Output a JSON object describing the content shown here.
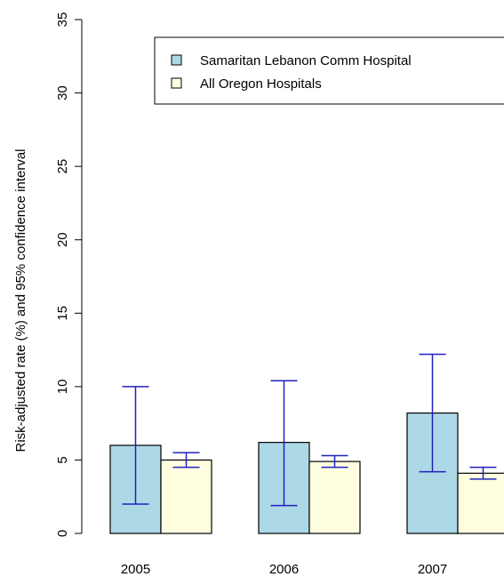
{
  "chart_data": {
    "type": "bar",
    "title": "",
    "xlabel": "",
    "ylabel": "Risk-adjusted rate (%) and 95% confidence interval",
    "ylim": [
      0,
      35
    ],
    "yticks": [
      0,
      5,
      10,
      15,
      20,
      25,
      30,
      35
    ],
    "ytick_labels": [
      "0",
      "5",
      "10",
      "15",
      "20",
      "25",
      "30",
      "35"
    ],
    "categories": [
      "2005",
      "2006",
      "2007"
    ],
    "series": [
      {
        "name": "Samaritan Lebanon Comm Hospital",
        "color": "#add8e6",
        "values": [
          6.0,
          6.2,
          8.2
        ],
        "ci_low": [
          2.0,
          1.9,
          4.2
        ],
        "ci_high": [
          10.0,
          10.4,
          12.2
        ]
      },
      {
        "name": "All Oregon Hospitals",
        "color": "#ffffe0",
        "values": [
          5.0,
          4.9,
          4.1
        ],
        "ci_low": [
          4.5,
          4.5,
          3.7
        ],
        "ci_high": [
          5.5,
          5.3,
          4.5
        ]
      }
    ],
    "error_bar_color": "#2020c0",
    "legend_position": "top-right",
    "grid": false
  }
}
